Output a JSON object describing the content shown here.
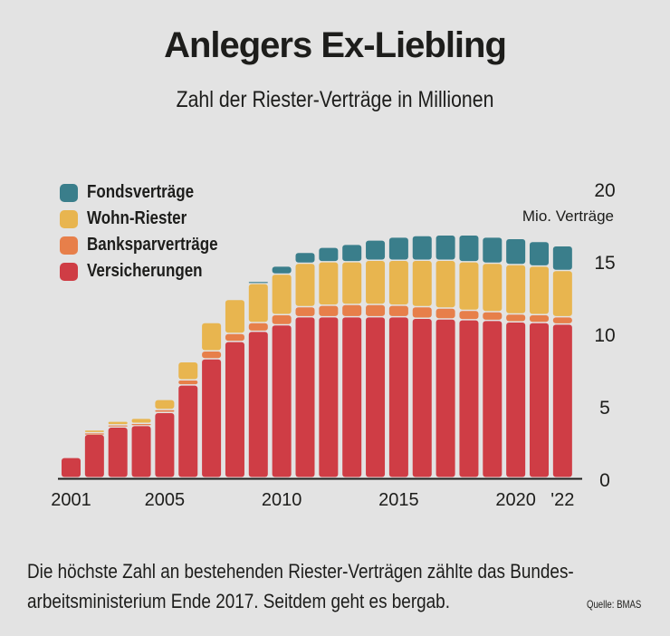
{
  "title": "Anlegers Ex-Liebling",
  "subtitle": "Zahl der Riester-Verträge in Millionen",
  "note_line1": "Die höchste Zahl an bestehenden Riester-Verträgen zählte das Bundes-",
  "note_line2": "arbeitsministerium Ende 2017. Seitdem geht es bergab.",
  "source": "Quelle: BMAS",
  "chart_data": {
    "type": "bar",
    "stacked": true,
    "categories": [
      "2001",
      "2002",
      "2003",
      "2004",
      "2005",
      "2006",
      "2007",
      "2008",
      "2009",
      "2010",
      "2011",
      "2012",
      "2013",
      "2014",
      "2015",
      "2016",
      "2017",
      "2018",
      "2019",
      "2020",
      "2021",
      "2022"
    ],
    "x_tick_labels": [
      {
        "index": 0,
        "label": "2001"
      },
      {
        "index": 4,
        "label": "2005"
      },
      {
        "index": 9,
        "label": "2010"
      },
      {
        "index": 14,
        "label": "2015"
      },
      {
        "index": 19,
        "label": "2020"
      },
      {
        "index": 21,
        "label": "'22"
      }
    ],
    "y_ticks": [
      0,
      5,
      10,
      15,
      20
    ],
    "ylabel": "Mio. Verträge",
    "ylim": [
      0,
      20
    ],
    "y_axis_side": "right",
    "legend_position": "top-left",
    "series": [
      {
        "name": "Versicherungen",
        "color": "#cf3d45",
        "values": [
          1.4,
          3.0,
          3.5,
          3.6,
          4.5,
          6.4,
          8.2,
          9.4,
          10.1,
          10.55,
          11.1,
          11.1,
          11.1,
          11.1,
          11.1,
          11.0,
          10.95,
          10.9,
          10.85,
          10.75,
          10.7,
          10.6
        ]
      },
      {
        "name": "Banksparverträge",
        "color": "#e77f4a",
        "values": [
          0,
          0.1,
          0.15,
          0.15,
          0.2,
          0.35,
          0.55,
          0.55,
          0.6,
          0.7,
          0.7,
          0.8,
          0.85,
          0.85,
          0.8,
          0.8,
          0.75,
          0.65,
          0.6,
          0.55,
          0.55,
          0.5
        ]
      },
      {
        "name": "Wohn-Riester",
        "color": "#e8b54f",
        "values": [
          0,
          0.2,
          0.25,
          0.35,
          0.7,
          1.25,
          1.95,
          2.35,
          2.7,
          2.8,
          3.0,
          3.0,
          2.95,
          3.05,
          3.1,
          3.2,
          3.3,
          3.35,
          3.35,
          3.4,
          3.35,
          3.2
        ]
      },
      {
        "name": "Fondsverträge",
        "color": "#3a7e8b",
        "values": [
          0,
          0,
          0,
          0,
          0,
          0,
          0,
          0,
          0.15,
          0.55,
          0.75,
          1.0,
          1.2,
          1.4,
          1.6,
          1.7,
          1.75,
          1.85,
          1.8,
          1.8,
          1.7,
          1.7
        ]
      }
    ]
  }
}
